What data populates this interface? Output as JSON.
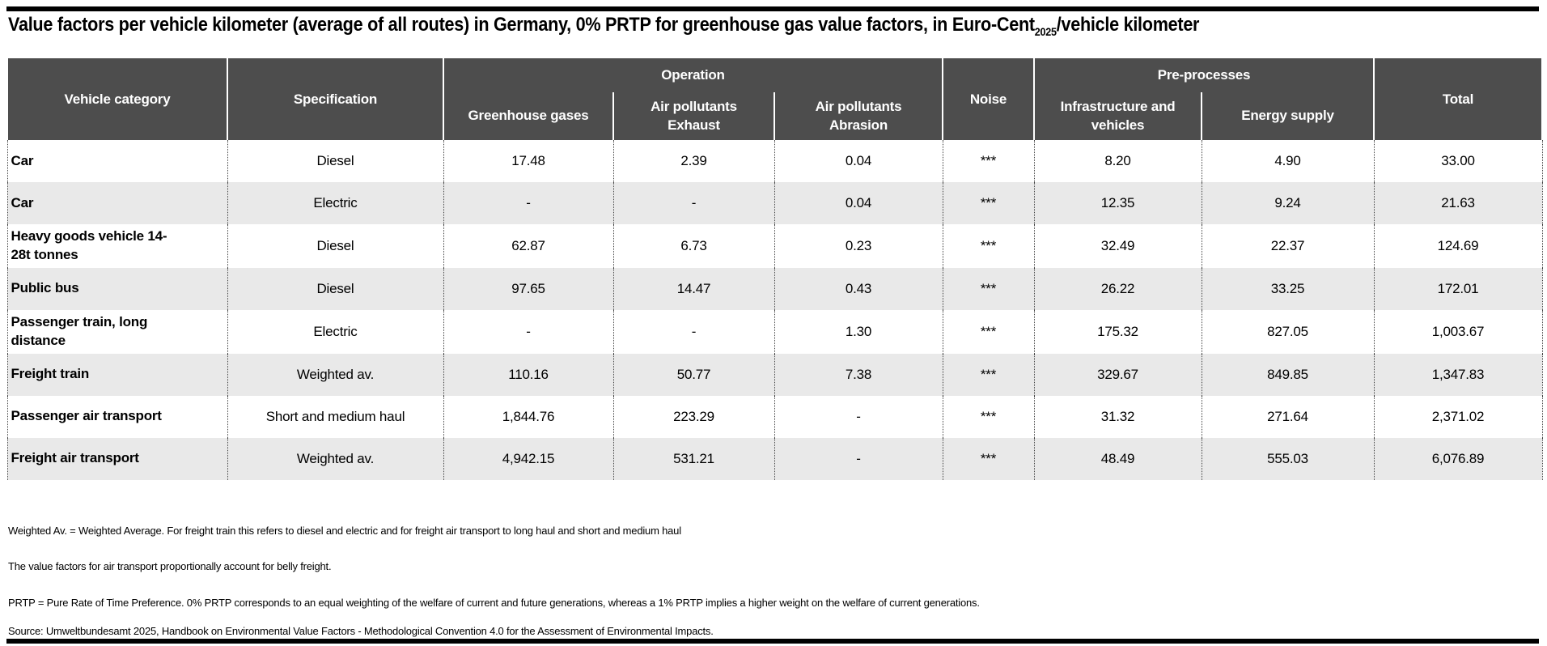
{
  "title": {
    "prefix": "Value factors per vehicle kilometer (average of all routes) in Germany, 0% PRTP for greenhouse gas value factors, in Euro-Cent",
    "subscript": "2025",
    "suffix": "/vehicle kilometer"
  },
  "table": {
    "headers": {
      "vehicle_category": "Vehicle category",
      "specification": "Specification",
      "operation_group": "Operation",
      "greenhouse_gases": "Greenhouse gases",
      "air_pollutants_1": "Air pollutants",
      "exhaust": "Exhaust",
      "air_pollutants_2": "Air pollutants",
      "abrasion": "Abrasion",
      "noise": "Noise",
      "preprocesses_group": "Pre-processes",
      "infrastructure_line1": "Infrastructure and",
      "infrastructure_line2": "vehicles",
      "energy_supply": "Energy supply",
      "total": "Total"
    }
  },
  "chart_data": {
    "type": "table",
    "title": "Value factors per vehicle kilometer (average of all routes) in Germany, 0% PRTP for greenhouse gas value factors, in Euro-Cent2025/vehicle kilometer",
    "columns": [
      "Vehicle category",
      "Specification",
      "Operation: Greenhouse gases",
      "Operation: Air pollutants Exhaust",
      "Operation: Air pollutants Abrasion",
      "Noise",
      "Pre-processes: Infrastructure and vehicles",
      "Pre-processes: Energy supply",
      "Total"
    ],
    "rows": [
      [
        "Car",
        "Diesel",
        "17.48",
        "2.39",
        "0.04",
        "***",
        "8.20",
        "4.90",
        "33.00"
      ],
      [
        "Car",
        "Electric",
        "-",
        "-",
        "0.04",
        "***",
        "12.35",
        "9.24",
        "21.63"
      ],
      [
        "Heavy goods vehicle 14-28t tonnes",
        "Diesel",
        "62.87",
        "6.73",
        "0.23",
        "***",
        "32.49",
        "22.37",
        "124.69"
      ],
      [
        "Public bus",
        "Diesel",
        "97.65",
        "14.47",
        "0.43",
        "***",
        "26.22",
        "33.25",
        "172.01"
      ],
      [
        "Passenger train, long distance",
        "Electric",
        "-",
        "-",
        "1.30",
        "***",
        "175.32",
        "827.05",
        "1,003.67"
      ],
      [
        "Freight train",
        "Weighted av.",
        "110.16",
        "50.77",
        "7.38",
        "***",
        "329.67",
        "849.85",
        "1,347.83"
      ],
      [
        "Passenger air transport",
        "Short and medium haul",
        "1,844.76",
        "223.29",
        "-",
        "***",
        "31.32",
        "271.64",
        "2,371.02"
      ],
      [
        "Freight air transport",
        "Weighted av.",
        "4,942.15",
        "531.21",
        "-",
        "***",
        "48.49",
        "555.03",
        "6,076.89"
      ]
    ]
  },
  "footnotes": [
    "Weighted Av. = Weighted Average. For freight train this refers to diesel and electric and for freight air transport to long haul and short and medium haul",
    "The value factors for air transport proportionally account for belly freight.",
    "PRTP = Pure Rate of Time Preference. 0% PRTP corresponds to an equal weighting of the welfare of current  and future generations, whereas a 1% PRTP implies a higher weight on the welfare of current generations.",
    "Source: Umweltbundesamt 2025, Handbook on Environmental Value Factors - Methodological Convention 4.0 for the Assessment of Environmental Impacts."
  ],
  "colors": {
    "header_bg": "#4d4d4d",
    "header_text": "#ffffff",
    "row_alt_bg": "#e9e9e9",
    "rule": "#000000"
  }
}
